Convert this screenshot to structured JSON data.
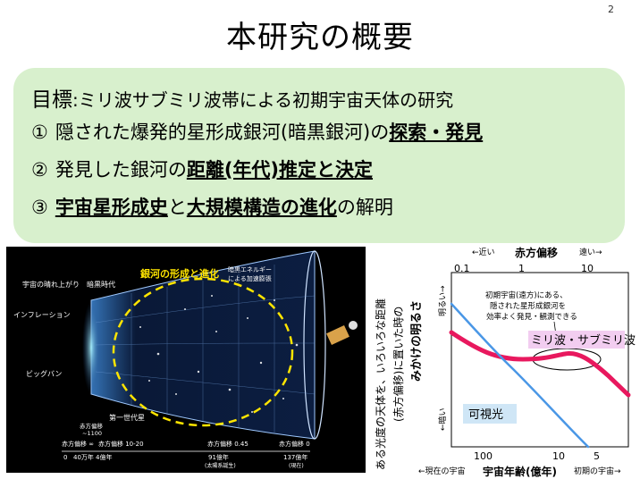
{
  "page_number": "2",
  "title": "本研究の概要",
  "goal": {
    "label": "目標",
    "text": ":ミリ波サブミリ波帯による初期宇宙天体の研究"
  },
  "items": [
    {
      "num": "①",
      "parts": [
        {
          "text": "隠された爆発的星形成銀河(暗黒銀河)の",
          "emph": false
        },
        {
          "text": "探索・発見",
          "emph": true
        }
      ]
    },
    {
      "num": "②",
      "parts": [
        {
          "text": "発見した銀河の",
          "emph": false
        },
        {
          "text": "距離(年代)推定と決定",
          "emph": true
        }
      ]
    },
    {
      "num": "③",
      "parts": [
        {
          "text": "宇宙星形成史",
          "emph": true
        },
        {
          "text": "と",
          "emph": false
        },
        {
          "text": "大規模構造の進化",
          "emph": true
        },
        {
          "text": "の解明",
          "emph": false
        }
      ]
    }
  ],
  "universe_figure": {
    "labels": {
      "clearing": "宇宙の晴れ上がり",
      "dark_ages": "暗黒時代",
      "dark_energy": "暗黒エネルギー\nによる加速膨張",
      "galaxy_evolution": "銀河の形成と進化",
      "inflation": "インフレーション",
      "big_bang": "ビッグバン",
      "first_stars": "第一世代星",
      "redshift_1100": "赤方偏移\n~1100",
      "redshift_inf": "赤方偏移 ∞",
      "redshift_10_20": "赤方偏移 10-20",
      "redshift_045": "赤方偏移 0.45",
      "redshift_0": "赤方偏移 0",
      "time_0": "0",
      "time_400k": "40万年",
      "time_400m": "4億年",
      "time_9_1b": "91億年\n(太陽系誕生)",
      "time_13_7b": "137億年\n(現在)"
    }
  },
  "graph": {
    "top_label_near": "←近い",
    "top_title": "赤方偏移",
    "top_label_far": "遠い→",
    "top_ticks": [
      "0.1",
      "1",
      "10"
    ],
    "y_axis_text_line1": "ある光度の天体を、いろいろな距離",
    "y_axis_text_line2": "(赤方偏移)に置いた時の",
    "y_axis_title": "みかけの明るさ",
    "y_bright": "明るい→",
    "y_dark": "←暗い",
    "annotation": "初期宇宙(遠方)にある、\n隠された星形成銀河を\n効率よく発見・観測できる",
    "legend_mm": "ミリ波・サブミリ波",
    "legend_visible": "可視光",
    "bottom_ticks": [
      "100",
      "10",
      "5"
    ],
    "bottom_left": "←現在の宇宙",
    "bottom_title": "宇宙年齢(億年)",
    "bottom_right": "初期の宇宙→",
    "colors": {
      "mm": "#e8185e",
      "visible": "#4a97e6",
      "mm_label_bg": "#f2cdf0",
      "visible_label_bg": "#cfe6f6"
    }
  }
}
